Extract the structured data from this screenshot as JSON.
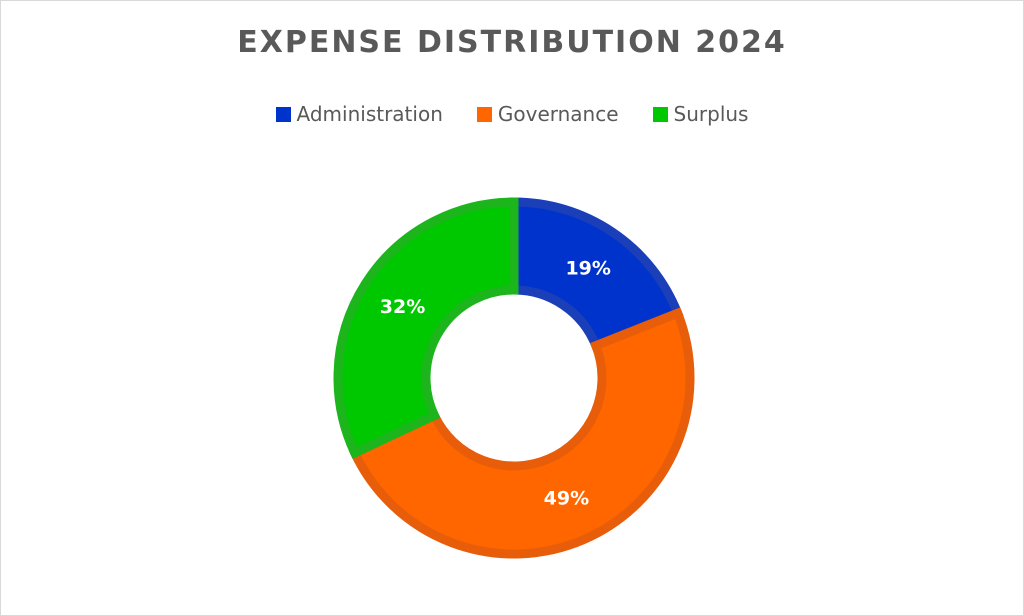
{
  "chart_data": {
    "type": "pie",
    "title": "EXPENSE DISTRIBUTION 2024",
    "legend_position": "top",
    "donut": true,
    "slices": [
      {
        "name": "Administration",
        "value": 19,
        "label": "19%",
        "color": "#0033cc",
        "edge": "#1a3fb8"
      },
      {
        "name": "Governance",
        "value": 49,
        "label": "49%",
        "color": "#ff6600",
        "edge": "#e85d0a"
      },
      {
        "name": "Surplus",
        "value": 32,
        "label": "32%",
        "color": "#00c800",
        "edge": "#1cb51c"
      }
    ]
  }
}
